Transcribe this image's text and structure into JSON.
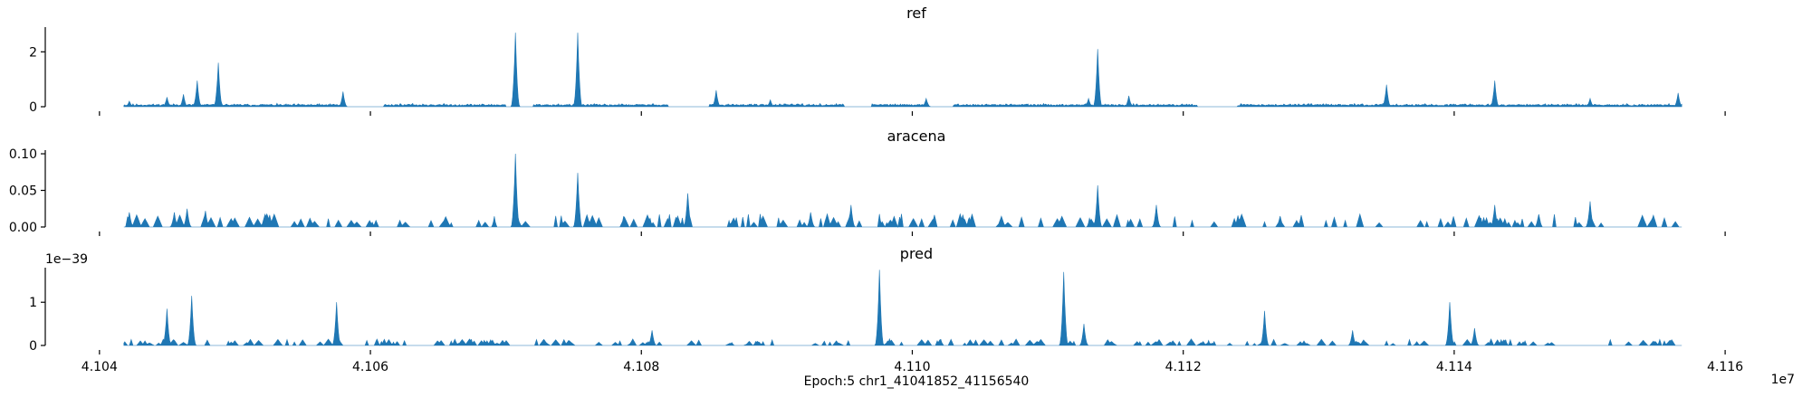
{
  "figure": {
    "xlabel": "Epoch:5 chr1_41041852_41156540",
    "x_offset_label": "1e7",
    "fill_color": "#1f77b4",
    "axis_color": "#000000"
  },
  "chart_data": [
    {
      "type": "area",
      "title": "ref",
      "xlim": [
        4.1036,
        4.1163
      ],
      "ylim": [
        0,
        2.9
      ],
      "yticks": [
        {
          "value": 0,
          "label": "0"
        },
        {
          "value": 2,
          "label": "2"
        }
      ],
      "xticks": [
        4.104,
        4.106,
        4.108,
        4.11,
        4.112,
        4.114,
        4.116
      ],
      "show_xtick_labels": false,
      "baseline": 0.05,
      "noise_level": 0.06,
      "noise_seed": 11,
      "gaps": [
        [
          4.1058,
          4.1061
        ],
        [
          4.107,
          4.1072
        ],
        [
          4.1082,
          4.1085
        ],
        [
          4.1095,
          4.1097
        ],
        [
          4.1101,
          4.1103
        ],
        [
          4.1121,
          4.1124
        ]
      ],
      "peaks": [
        {
          "x": 4.10422,
          "y": 0.2
        },
        {
          "x": 4.1045,
          "y": 0.35
        },
        {
          "x": 4.10462,
          "y": 0.45
        },
        {
          "x": 4.10472,
          "y": 0.95
        },
        {
          "x": 4.10488,
          "y": 1.6
        },
        {
          "x": 4.1058,
          "y": 0.55
        },
        {
          "x": 4.10707,
          "y": 2.7
        },
        {
          "x": 4.10753,
          "y": 2.7
        },
        {
          "x": 4.10855,
          "y": 0.6
        },
        {
          "x": 4.10895,
          "y": 0.25
        },
        {
          "x": 4.1101,
          "y": 0.3
        },
        {
          "x": 4.1113,
          "y": 0.3
        },
        {
          "x": 4.11137,
          "y": 2.1
        },
        {
          "x": 4.1116,
          "y": 0.4
        },
        {
          "x": 4.1135,
          "y": 0.8
        },
        {
          "x": 4.1143,
          "y": 0.95
        },
        {
          "x": 4.115,
          "y": 0.3
        },
        {
          "x": 4.11565,
          "y": 0.5
        }
      ]
    },
    {
      "type": "area",
      "title": "aracena",
      "xlim": [
        4.1036,
        4.1163
      ],
      "ylim": [
        0,
        0.105
      ],
      "yticks": [
        {
          "value": 0,
          "label": "0.00"
        },
        {
          "value": 0.05,
          "label": "0.05"
        },
        {
          "value": 0.1,
          "label": "0.10"
        }
      ],
      "xticks": [
        4.104,
        4.106,
        4.108,
        4.11,
        4.112,
        4.114,
        4.116
      ],
      "show_xtick_labels": false,
      "baseline": 0,
      "noise_level": 0,
      "noise_seed": 23,
      "gaps": [],
      "sparse_bumps": {
        "count": 170,
        "max": 0.018,
        "seed": 5
      },
      "peaks": [
        {
          "x": 4.10422,
          "y": 0.02
        },
        {
          "x": 4.10455,
          "y": 0.02
        },
        {
          "x": 4.10465,
          "y": 0.025
        },
        {
          "x": 4.10478,
          "y": 0.022
        },
        {
          "x": 4.10707,
          "y": 0.1
        },
        {
          "x": 4.10753,
          "y": 0.074
        },
        {
          "x": 4.10834,
          "y": 0.046
        },
        {
          "x": 4.10925,
          "y": 0.02
        },
        {
          "x": 4.10955,
          "y": 0.03
        },
        {
          "x": 4.11137,
          "y": 0.057
        },
        {
          "x": 4.1118,
          "y": 0.03
        },
        {
          "x": 4.1143,
          "y": 0.03
        },
        {
          "x": 4.115,
          "y": 0.035
        }
      ]
    },
    {
      "type": "area",
      "title": "pred",
      "offset_label": "1e−39",
      "xlim": [
        4.1036,
        4.1163
      ],
      "ylim": [
        0,
        1.8
      ],
      "yticks": [
        {
          "value": 0,
          "label": "0"
        },
        {
          "value": 1,
          "label": "1"
        }
      ],
      "xticks": [
        {
          "value": 4.104,
          "label": "4.104"
        },
        {
          "value": 4.106,
          "label": "4.106"
        },
        {
          "value": 4.108,
          "label": "4.108"
        },
        {
          "value": 4.11,
          "label": "4.110"
        },
        {
          "value": 4.112,
          "label": "4.112"
        },
        {
          "value": 4.114,
          "label": "4.114"
        },
        {
          "value": 4.116,
          "label": "4.116"
        }
      ],
      "show_xtick_labels": true,
      "baseline": 0,
      "noise_level": 0,
      "noise_seed": 37,
      "gaps": [],
      "sparse_bumps": {
        "count": 200,
        "max": 0.15,
        "seed": 9
      },
      "peaks": [
        {
          "x": 4.1045,
          "y": 0.85
        },
        {
          "x": 4.10468,
          "y": 1.15
        },
        {
          "x": 4.10575,
          "y": 1.0
        },
        {
          "x": 4.10808,
          "y": 0.35
        },
        {
          "x": 4.10976,
          "y": 1.75
        },
        {
          "x": 4.11112,
          "y": 1.7
        },
        {
          "x": 4.11127,
          "y": 0.5
        },
        {
          "x": 4.1126,
          "y": 0.8
        },
        {
          "x": 4.11325,
          "y": 0.35
        },
        {
          "x": 4.11397,
          "y": 1.0
        },
        {
          "x": 4.11415,
          "y": 0.4
        }
      ]
    }
  ]
}
